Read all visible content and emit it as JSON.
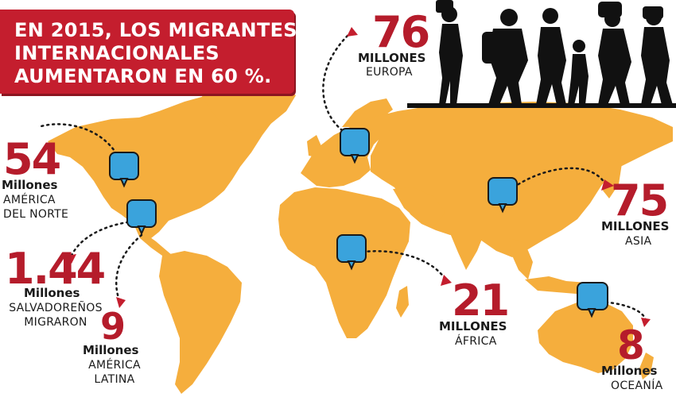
{
  "title": {
    "line1": "EN 2015, LOS MIGRANTES",
    "line2": "INTERNACIONALES",
    "line3": "AUMENTARON EN 60 %."
  },
  "colors": {
    "land": "#f5ae3d",
    "accent_red": "#c41e2e",
    "marker_blue": "#3aa3dc",
    "text_dark": "#1a1a1a"
  },
  "regions": [
    {
      "id": "europe",
      "number": "76",
      "unit": "MILLONES",
      "label": "EUROPA"
    },
    {
      "id": "north-america",
      "number": "54",
      "unit": "Millones",
      "label_line1": "AMÉRICA",
      "label_line2": "DEL NORTE"
    },
    {
      "id": "el-salvador",
      "number": "1.44",
      "unit": "Millones",
      "label_line1": "SALVADOREÑOS",
      "label_line2": "MIGRARON"
    },
    {
      "id": "latin-america",
      "number": "9",
      "unit": "Millones",
      "label_line1": "AMÉRICA",
      "label_line2": "LATINA"
    },
    {
      "id": "asia",
      "number": "75",
      "unit": "MILLONES",
      "label": "ASIA"
    },
    {
      "id": "africa",
      "number": "21",
      "unit": "MILLONES",
      "label": "ÁFRICA"
    },
    {
      "id": "oceania",
      "number": "8",
      "unit": "Millones",
      "label": "OCEANÍA"
    }
  ],
  "icons": {
    "marker": "speech-bubble-icon",
    "migrants": "migrant-silhouettes"
  }
}
